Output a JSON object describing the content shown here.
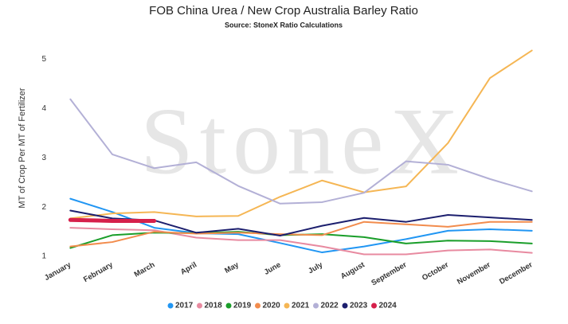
{
  "chart_data": {
    "type": "line",
    "title": "FOB China Urea / New Crop Australia Barley Ratio",
    "subtitle": "Source: StoneX Ratio Calculations",
    "watermark": "StoneX",
    "y_label": "MT of Crop Per MT of Fertilizer",
    "categories": [
      "January",
      "February",
      "March",
      "April",
      "May",
      "June",
      "July",
      "August",
      "September",
      "October",
      "November",
      "December"
    ],
    "ylim": [
      1,
      5.3
    ],
    "yticks": [
      1,
      2,
      3,
      4,
      5
    ],
    "grid": false,
    "legend": "bottom",
    "series": [
      {
        "name": "2017",
        "color": "#2196f3",
        "values": [
          2.17,
          1.9,
          1.58,
          1.47,
          1.45,
          1.27,
          1.08,
          1.2,
          1.35,
          1.52,
          1.55,
          1.52
        ]
      },
      {
        "name": "2018",
        "color": "#e88aa0",
        "values": [
          1.58,
          1.55,
          1.53,
          1.38,
          1.33,
          1.33,
          1.2,
          1.04,
          1.04,
          1.12,
          1.14,
          1.07
        ]
      },
      {
        "name": "2019",
        "color": "#1a9e2a",
        "values": [
          1.17,
          1.43,
          1.48,
          1.47,
          1.5,
          1.43,
          1.45,
          1.39,
          1.26,
          1.32,
          1.31,
          1.26
        ]
      },
      {
        "name": "2020",
        "color": "#f28c4d",
        "values": [
          1.2,
          1.29,
          1.5,
          1.46,
          1.48,
          1.45,
          1.43,
          1.7,
          1.65,
          1.6,
          1.7,
          1.7
        ]
      },
      {
        "name": "2021",
        "color": "#f5b654",
        "values": [
          1.77,
          1.87,
          1.9,
          1.81,
          1.82,
          2.21,
          2.54,
          2.3,
          2.42,
          3.3,
          4.62,
          5.18
        ]
      },
      {
        "name": "2022",
        "color": "#b3b0d6",
        "values": [
          4.19,
          3.07,
          2.79,
          2.91,
          2.43,
          2.07,
          2.1,
          2.29,
          2.93,
          2.86,
          2.57,
          2.32
        ]
      },
      {
        "name": "2023",
        "color": "#1c1f6e",
        "values": [
          1.93,
          1.77,
          1.73,
          1.48,
          1.56,
          1.42,
          1.62,
          1.78,
          1.7,
          1.84,
          1.79,
          1.74
        ]
      },
      {
        "name": "2024",
        "color": "#d6204b",
        "values": [
          1.74,
          1.72,
          1.72,
          null,
          null,
          null,
          null,
          null,
          null,
          null,
          null,
          null
        ]
      }
    ]
  }
}
